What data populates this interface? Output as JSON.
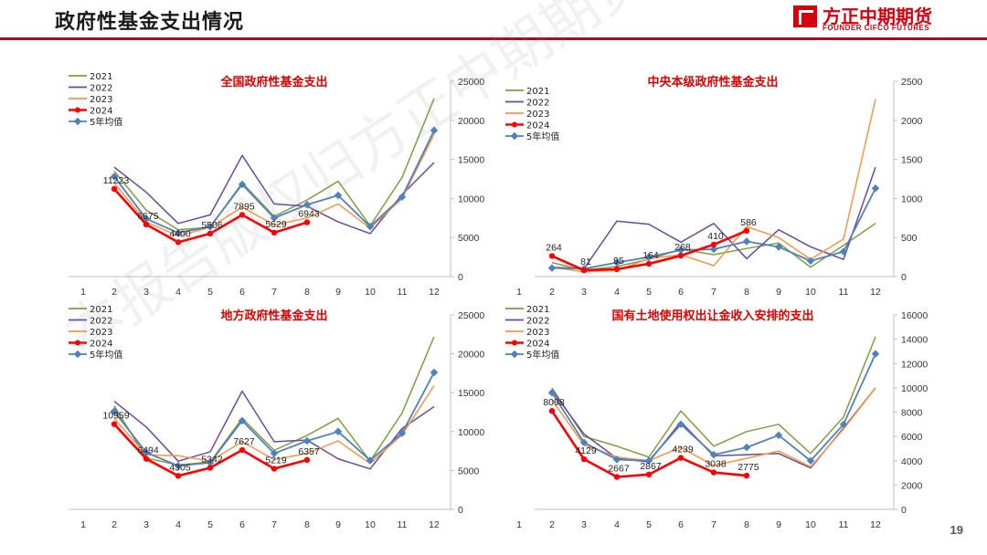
{
  "page": {
    "title": "政府性基金支出情况",
    "page_number": "19"
  },
  "logo": {
    "cn": "方正中期期货",
    "en": "FOUNDER CIFCO FUTURES"
  },
  "watermark": "本报告版权归方正中期期货研究院所有",
  "colors": {
    "2021": "#7f9f3f",
    "2022": "#6a4a9a",
    "2023": "#f79646",
    "2024": "#ff0000",
    "5年均值": "#4f81bd"
  },
  "chart_data": [
    {
      "type": "line",
      "title": "全国政府性基金支出",
      "x": [
        "1",
        "2",
        "3",
        "4",
        "5",
        "6",
        "7",
        "8",
        "9",
        "10",
        "11",
        "12"
      ],
      "ylim": [
        0,
        25000
      ],
      "yticks": [
        0,
        5000,
        10000,
        15000,
        20000,
        25000
      ],
      "legend": "top-left",
      "series": [
        {
          "name": "2021",
          "values": [
            null,
            13500,
            8500,
            6000,
            6300,
            12000,
            7700,
            9800,
            12200,
            6500,
            12700,
            22800
          ]
        },
        {
          "name": "2022",
          "values": [
            null,
            14000,
            10800,
            6800,
            7900,
            15500,
            9300,
            9000,
            7000,
            5500,
            10500,
            14600
          ]
        },
        {
          "name": "2023",
          "values": [
            null,
            12000,
            7000,
            5200,
            6300,
            8900,
            6600,
            7500,
            9300,
            6200,
            10000,
            18200
          ]
        },
        {
          "name": "2024",
          "values": [
            null,
            11223,
            6675,
            4400,
            5506,
            7895,
            5629,
            6943,
            null,
            null,
            null,
            null
          ]
        },
        {
          "name": "5年均值",
          "values": [
            null,
            12800,
            7400,
            5600,
            6400,
            11800,
            7500,
            9200,
            10400,
            6400,
            10200,
            18700
          ]
        }
      ],
      "data_labels": [
        "11223",
        "6675",
        "4400",
        "5506",
        "7895",
        "5629",
        "6943"
      ]
    },
    {
      "type": "line",
      "title": "中央本级政府性基金支出",
      "x": [
        "1",
        "2",
        "3",
        "4",
        "5",
        "6",
        "7",
        "8",
        "9",
        "10",
        "11",
        "12"
      ],
      "ylim": [
        0,
        2500
      ],
      "yticks": [
        0,
        500,
        1000,
        1500,
        2000,
        2500
      ],
      "legend": "top-left",
      "series": [
        {
          "name": "2021",
          "values": [
            null,
            180,
            80,
            130,
            220,
            350,
            280,
            360,
            430,
            120,
            400,
            680
          ]
        },
        {
          "name": "2022",
          "values": [
            null,
            120,
            100,
            710,
            670,
            440,
            680,
            230,
            600,
            380,
            220,
            1400
          ]
        },
        {
          "name": "2023",
          "values": [
            null,
            120,
            60,
            80,
            230,
            280,
            140,
            640,
            500,
            220,
            480,
            2270
          ]
        },
        {
          "name": "2024",
          "values": [
            null,
            264,
            81,
            95,
            164,
            268,
            410,
            586,
            null,
            null,
            null,
            null
          ]
        },
        {
          "name": "5年均值",
          "values": [
            null,
            110,
            100,
            180,
            250,
            340,
            350,
            450,
            380,
            200,
            320,
            1130
          ]
        }
      ],
      "data_labels": [
        "264",
        "81",
        "95",
        "164",
        "268",
        "410",
        "586"
      ]
    },
    {
      "type": "line",
      "title": "地方政府性基金支出",
      "x": [
        "1",
        "2",
        "3",
        "4",
        "5",
        "6",
        "7",
        "8",
        "9",
        "10",
        "11",
        "12"
      ],
      "ylim": [
        0,
        25000
      ],
      "yticks": [
        0,
        5000,
        10000,
        15000,
        20000,
        25000
      ],
      "legend": "top-left",
      "series": [
        {
          "name": "2021",
          "values": [
            null,
            13300,
            6600,
            5700,
            6100,
            11700,
            7600,
            9500,
            11700,
            6200,
            12400,
            22200
          ]
        },
        {
          "name": "2022",
          "values": [
            null,
            13900,
            10600,
            6200,
            7400,
            15200,
            8700,
            8900,
            6500,
            5200,
            10400,
            13200
          ]
        },
        {
          "name": "2023",
          "values": [
            null,
            11700,
            7000,
            6900,
            6200,
            8700,
            6400,
            7200,
            8800,
            5900,
            9600,
            15900
          ]
        },
        {
          "name": "2024",
          "values": [
            null,
            10959,
            6494,
            4305,
            5342,
            7627,
            5219,
            6357,
            null,
            null,
            null,
            null
          ]
        },
        {
          "name": "5年均值",
          "values": [
            null,
            12600,
            7300,
            5600,
            6000,
            11400,
            7200,
            8800,
            10000,
            6300,
            9800,
            17600
          ]
        }
      ],
      "data_labels": [
        "10959",
        "6494",
        "4305",
        "5342",
        "7627",
        "5219",
        "6357"
      ]
    },
    {
      "type": "line",
      "title": "国有土地使用权出让金收入安排的支出",
      "x": [
        "1",
        "2",
        "3",
        "4",
        "5",
        "6",
        "7",
        "8",
        "9",
        "10",
        "11",
        "12"
      ],
      "ylim": [
        0,
        16000
      ],
      "yticks": [
        0,
        2000,
        4000,
        6000,
        8000,
        10000,
        12000,
        14000,
        16000
      ],
      "legend": "top-left",
      "series": [
        {
          "name": "2021",
          "values": [
            null,
            10000,
            6000,
            5200,
            4300,
            8100,
            5200,
            6400,
            7000,
            4600,
            7600,
            14200
          ]
        },
        {
          "name": "2022",
          "values": [
            null,
            9800,
            6200,
            4200,
            3900,
            7200,
            4400,
            4500,
            4600,
            3400,
            6700,
            10000
          ]
        },
        {
          "name": "2023",
          "values": [
            null,
            9000,
            5300,
            4300,
            4000,
            5100,
            3600,
            4200,
            4800,
            3500,
            6600,
            10000
          ]
        },
        {
          "name": "2024",
          "values": [
            null,
            8098,
            4129,
            2667,
            2867,
            4239,
            3038,
            2775,
            null,
            null,
            null,
            null
          ]
        },
        {
          "name": "5年均值",
          "values": [
            null,
            9600,
            5500,
            4100,
            4000,
            7000,
            4500,
            5100,
            6100,
            4000,
            7000,
            12800
          ]
        }
      ],
      "data_labels": [
        "8098",
        "4129",
        "2667",
        "2867",
        "4239",
        "3038",
        "2775"
      ]
    }
  ]
}
